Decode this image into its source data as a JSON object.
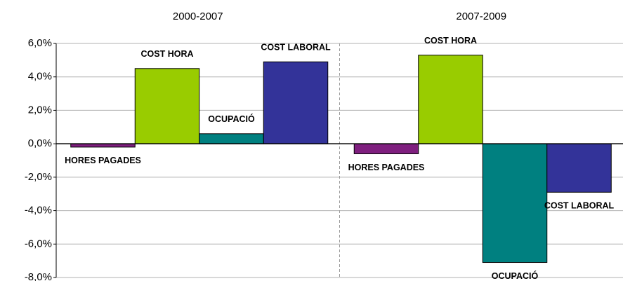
{
  "chart_data": {
    "type": "bar",
    "categories": [
      "2000-2007",
      "2007-2009"
    ],
    "series": [
      {
        "name": "HORES PAGADES",
        "color": "#7f1f7f",
        "values": [
          -0.2,
          -0.6
        ]
      },
      {
        "name": "COST HORA",
        "color": "#99cc00",
        "values": [
          4.5,
          5.3
        ]
      },
      {
        "name": "OCUPACIÓ",
        "color": "#008080",
        "values": [
          0.6,
          -7.1
        ]
      },
      {
        "name": "COST LABORAL",
        "color": "#333399",
        "values": [
          4.9,
          -2.9
        ]
      }
    ],
    "ylim": [
      -8,
      6
    ],
    "yticks": [
      {
        "value": -8,
        "label": "-8,0%"
      },
      {
        "value": -6,
        "label": "-6,0%"
      },
      {
        "value": -4,
        "label": "-4,0%"
      },
      {
        "value": -2,
        "label": "-2,0%"
      },
      {
        "value": 0,
        "label": "0,0%"
      },
      {
        "value": 2,
        "label": "2,0%"
      },
      {
        "value": 4,
        "label": "4,0%"
      },
      {
        "value": 6,
        "label": "6,0%"
      }
    ],
    "grid": true
  }
}
